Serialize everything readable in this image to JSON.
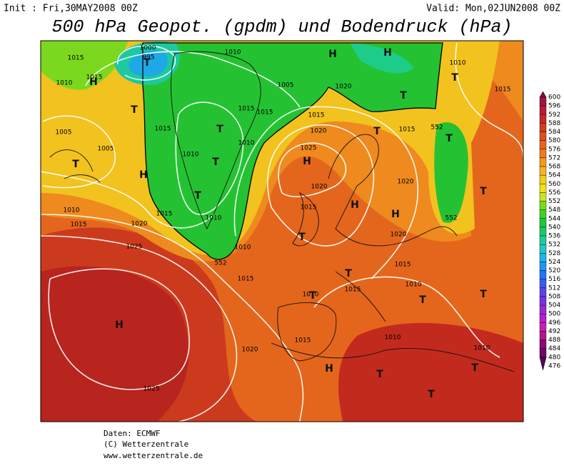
{
  "header": {
    "init": "Init : Fri,30MAY2008 00Z",
    "valid": "Valid: Mon,02JUN2008 00Z",
    "title": "500 hPa Geopot. (gpdm) und Bodendruck (hPa)"
  },
  "colorbar": {
    "ticks": [
      600,
      596,
      592,
      588,
      584,
      580,
      576,
      572,
      568,
      564,
      560,
      556,
      552,
      548,
      544,
      540,
      536,
      532,
      528,
      524,
      520,
      516,
      512,
      508,
      504,
      500,
      496,
      492,
      488,
      484,
      480,
      476
    ],
    "colors": [
      "#8c0a3c",
      "#a01440",
      "#b41e32",
      "#c82828",
      "#d23c1e",
      "#dc501e",
      "#e6641e",
      "#ee7a1e",
      "#f29a1e",
      "#f4b41e",
      "#f4cc1e",
      "#f0e01e",
      "#c8e61e",
      "#78dc1e",
      "#3cd228",
      "#1ec83c",
      "#1ec864",
      "#1ecc96",
      "#1ec8c8",
      "#1eb4e6",
      "#1e96f0",
      "#1e78f0",
      "#3c5af0",
      "#5a46e6",
      "#7832dc",
      "#9628d2",
      "#b41ec8",
      "#c81eb4",
      "#b4148c",
      "#8c0a78",
      "#6e0a64",
      "#500a50"
    ]
  },
  "map": {
    "labels": [
      "1000",
      "995",
      "1015",
      "1015",
      "1010",
      "1010",
      "1005",
      "1015",
      "1015",
      "1005",
      "1005",
      "1010",
      "1015",
      "1015",
      "1010",
      "1010",
      "1020",
      "1025",
      "1020",
      "1015",
      "1015",
      "1020",
      "1025",
      "1020",
      "1020",
      "1015",
      "1010",
      "1015",
      "1020",
      "1015",
      "1015",
      "1010",
      "1010",
      "1010",
      "1025",
      "1020",
      "1010",
      "552",
      "552",
      "552",
      "1010",
      "1015",
      "1010",
      "1015",
      "1015"
    ],
    "systems": [
      "H",
      "T",
      "H",
      "T",
      "T",
      "T",
      "H",
      "T",
      "H",
      "T",
      "T",
      "T",
      "H",
      "H",
      "H",
      "T",
      "T",
      "T",
      "T",
      "H",
      "T",
      "T",
      "T",
      "T",
      "T",
      "T",
      "T",
      "H"
    ]
  },
  "footer": [
    "Daten: ECMWF",
    "(C) Wetterzentrale",
    "www.wetterzentrale.de"
  ]
}
